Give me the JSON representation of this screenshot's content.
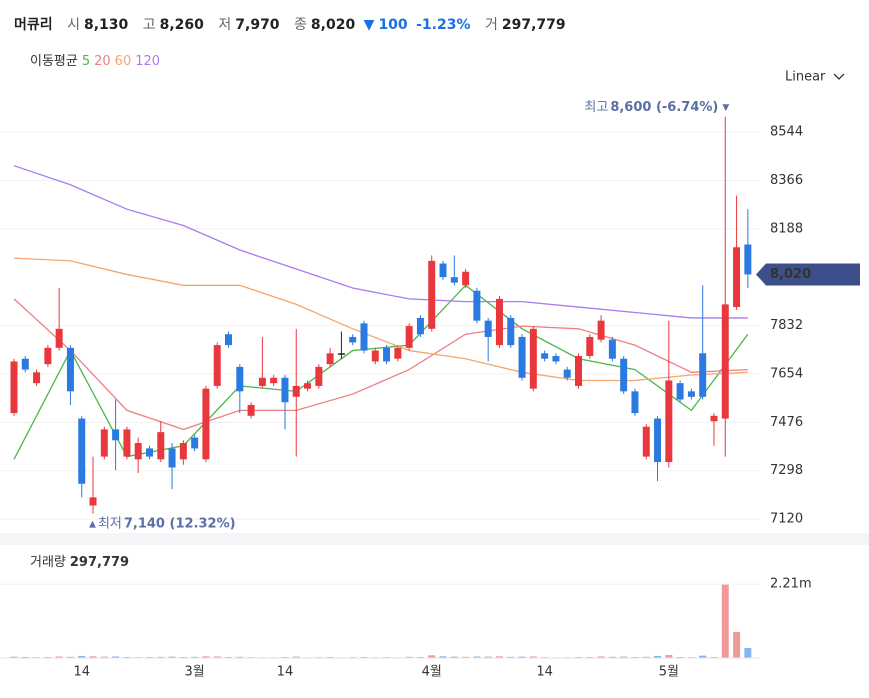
{
  "header": {
    "name": "머큐리",
    "open_label": "시",
    "open": "8,130",
    "high_label": "고",
    "high": "8,260",
    "low_label": "저",
    "low": "7,970",
    "close_label": "종",
    "close": "8,020",
    "change_arrow": "▼",
    "change": "100",
    "change_pct": "-1.23%",
    "volume_label": "거",
    "volume": "297,779"
  },
  "chart_data": {
    "type": "candlestick",
    "categories": [
      null,
      null,
      null,
      null,
      null,
      null,
      "14",
      null,
      null,
      null,
      null,
      null,
      null,
      null,
      null,
      null,
      "3월",
      null,
      null,
      null,
      null,
      null,
      null,
      null,
      "14",
      null,
      null,
      null,
      null,
      null,
      null,
      null,
      null,
      null,
      null,
      null,
      null,
      "4월",
      null,
      null,
      null,
      null,
      null,
      null,
      null,
      null,
      null,
      "14",
      null,
      null,
      null,
      null,
      null,
      null,
      null,
      null,
      null,
      null,
      "5월",
      null,
      null,
      null,
      null,
      null,
      null,
      null
    ],
    "open": [
      7510,
      7710,
      7620,
      7690,
      7750,
      7750,
      7490,
      7170,
      7350,
      7450,
      7350,
      7340,
      7380,
      7340,
      7380,
      7340,
      7420,
      7340,
      7610,
      7800,
      7680,
      7500,
      7610,
      7620,
      7640,
      7570,
      7600,
      7610,
      7690,
      7730,
      7790,
      7840,
      7700,
      7750,
      7710,
      7750,
      7860,
      7820,
      8060,
      8010,
      7980,
      7960,
      7850,
      7760,
      7860,
      7790,
      7600,
      7730,
      7720,
      7670,
      7610,
      7720,
      7780,
      7780,
      7710,
      7590,
      7350,
      7490,
      7330,
      7620,
      7590,
      7730,
      7480,
      7490,
      7900,
      8130
    ],
    "high": [
      7710,
      7720,
      7670,
      7760,
      7970,
      7760,
      7500,
      7350,
      7460,
      7560,
      7460,
      7420,
      7390,
      7480,
      7400,
      7410,
      7430,
      7610,
      7770,
      7810,
      7690,
      7550,
      7790,
      7650,
      7650,
      7820,
      7630,
      7690,
      7750,
      7810,
      7800,
      7850,
      7750,
      7760,
      7760,
      7840,
      7870,
      8090,
      8070,
      8090,
      8040,
      7970,
      7860,
      7940,
      7870,
      7800,
      7830,
      7740,
      7730,
      7680,
      7730,
      7800,
      7870,
      7790,
      7720,
      7600,
      7470,
      7500,
      7850,
      7630,
      7600,
      7980,
      7510,
      8600,
      8310,
      8260
    ],
    "low": [
      7500,
      7660,
      7610,
      7680,
      7740,
      7540,
      7200,
      7140,
      7340,
      7300,
      7340,
      7290,
      7340,
      7330,
      7230,
      7320,
      7370,
      7330,
      7600,
      7750,
      7510,
      7490,
      7600,
      7610,
      7450,
      7350,
      7590,
      7600,
      7680,
      7710,
      7760,
      7730,
      7690,
      7690,
      7700,
      7740,
      7790,
      7810,
      8000,
      7980,
      7970,
      7840,
      7700,
      7750,
      7750,
      7630,
      7590,
      7700,
      7690,
      7630,
      7600,
      7710,
      7770,
      7700,
      7580,
      7500,
      7340,
      7260,
      7310,
      7550,
      7560,
      7560,
      7390,
      7350,
      7890,
      7970
    ],
    "close": [
      7700,
      7670,
      7660,
      7750,
      7820,
      7590,
      7250,
      7200,
      7450,
      7410,
      7450,
      7400,
      7350,
      7440,
      7310,
      7400,
      7380,
      7600,
      7760,
      7760,
      7590,
      7540,
      7640,
      7640,
      7550,
      7610,
      7620,
      7680,
      7730,
      7730,
      7770,
      7740,
      7740,
      7700,
      7750,
      7830,
      7800,
      8070,
      8010,
      7990,
      8030,
      7850,
      7790,
      7930,
      7760,
      7640,
      7820,
      7710,
      7700,
      7640,
      7720,
      7790,
      7850,
      7710,
      7590,
      7510,
      7460,
      7330,
      7630,
      7560,
      7570,
      7570,
      7500,
      7910,
      8120,
      8020
    ],
    "up_color": "#e8383d",
    "down_color": "#2a7ae2",
    "flat_color": "#222222",
    "ylim": [
      7080,
      8680
    ],
    "yticks": [
      7120,
      7298,
      7476,
      7654,
      7832,
      8188,
      8366,
      8544
    ],
    "grid": true,
    "scale": "Linear",
    "last_price_label": "8,020",
    "last_price_color": "#3d4f8a",
    "high_annotation": {
      "label": "최고",
      "text": "8,600 (-6.74%)",
      "marker": "▼"
    },
    "low_annotation": {
      "marker": "▲",
      "label": "최저",
      "text": "7,140 (12.32%)"
    },
    "moving_average": {
      "label": "이동평균",
      "series": [
        {
          "name": "5",
          "color": "#4cb64c",
          "x": [
            0,
            5,
            10,
            15,
            20,
            25,
            30,
            35,
            40,
            45,
            50,
            55,
            60,
            65
          ],
          "values": [
            7340,
            7740,
            7350,
            7390,
            7610,
            7590,
            7740,
            7760,
            7980,
            7820,
            7710,
            7670,
            7520,
            7800
          ]
        },
        {
          "name": "20",
          "color": "#ee7f84",
          "x": [
            0,
            5,
            10,
            15,
            20,
            25,
            30,
            35,
            40,
            45,
            50,
            55,
            60,
            65
          ],
          "values": [
            7930,
            7740,
            7520,
            7450,
            7520,
            7520,
            7580,
            7670,
            7800,
            7830,
            7820,
            7760,
            7660,
            7670
          ]
        },
        {
          "name": "60",
          "color": "#f3a76e",
          "x": [
            0,
            5,
            10,
            15,
            20,
            25,
            30,
            35,
            40,
            45,
            50,
            55,
            60,
            65
          ],
          "values": [
            8080,
            8070,
            8020,
            7980,
            7980,
            7910,
            7820,
            7740,
            7710,
            7660,
            7630,
            7630,
            7650,
            7660
          ]
        },
        {
          "name": "120",
          "color": "#a87cf0",
          "x": [
            0,
            5,
            10,
            15,
            20,
            25,
            30,
            35,
            40,
            45,
            50,
            55,
            60,
            65
          ],
          "values": [
            8420,
            8350,
            8260,
            8200,
            8110,
            8040,
            7970,
            7930,
            7920,
            7920,
            7900,
            7880,
            7860,
            7860
          ]
        }
      ]
    },
    "volume": {
      "label": "거래량",
      "value_label": "297,779",
      "values": [
        40000,
        30000,
        25000,
        30000,
        45000,
        35000,
        60000,
        50000,
        40000,
        45000,
        30000,
        25000,
        30000,
        35000,
        40000,
        30000,
        35000,
        50000,
        45000,
        30000,
        35000,
        25000,
        20000,
        20000,
        30000,
        40000,
        20000,
        25000,
        30000,
        20000,
        25000,
        30000,
        20000,
        25000,
        20000,
        35000,
        30000,
        80000,
        50000,
        40000,
        35000,
        45000,
        40000,
        50000,
        35000,
        40000,
        45000,
        25000,
        20000,
        20000,
        30000,
        30000,
        45000,
        35000,
        40000,
        30000,
        35000,
        60000,
        90000,
        30000,
        25000,
        70000,
        30000,
        2210000,
        780000,
        297779
      ],
      "ylim": [
        0,
        3290000
      ],
      "yticks": [
        {
          "value": 2210000,
          "label": "2.21m"
        }
      ],
      "up_color": "#f09a9c",
      "down_color": "#86b4f2"
    }
  }
}
